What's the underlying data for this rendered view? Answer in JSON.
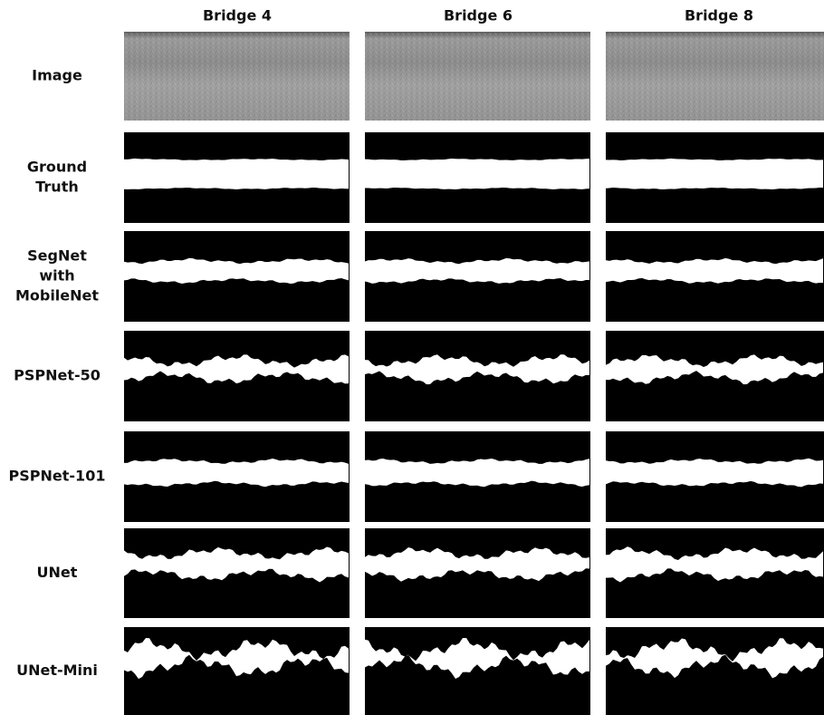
{
  "figure": {
    "columns": [
      "Bridge 4",
      "Bridge 6",
      "Bridge 8"
    ],
    "rows": [
      {
        "label": [
          "Image"
        ]
      },
      {
        "label": [
          "Ground",
          "Truth"
        ]
      },
      {
        "label": [
          "SegNet",
          "with",
          "MobileNet"
        ]
      },
      {
        "label": [
          "PSPNet-50"
        ]
      },
      {
        "label": [
          "PSPNet-101"
        ]
      },
      {
        "label": [
          "UNet"
        ]
      },
      {
        "label": [
          "UNet-Mini"
        ]
      }
    ]
  }
}
